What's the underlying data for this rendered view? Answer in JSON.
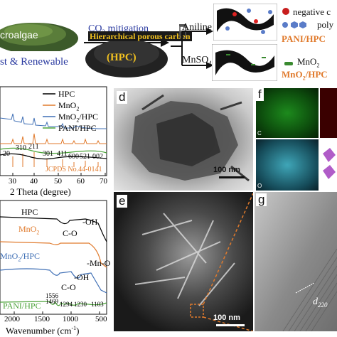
{
  "top": {
    "microalgae_label": "croalgae",
    "fast_renewable": "st & Renewable",
    "co2_label": "CO",
    "co2_sub": "2",
    "co2_rest": " mitigation",
    "hpc_title": "Hierarchical porous carbon",
    "hpc_abbr": "(HPC)",
    "aniline": "Aniline",
    "mnso4": "MnSO",
    "mnso4_sub": "4",
    "legend_negative": "negative c",
    "legend_poly": "poly",
    "pani_hpc": "PANI/HPC",
    "legend_mno2": "MnO",
    "legend_mno2_sub": "2",
    "mno2_hpc": "MnO",
    "mno2_hpc_sub": "2",
    "mno2_hpc_rest": "/HPC"
  },
  "xrd": {
    "legend": [
      {
        "name": "HPC",
        "color": "#000000"
      },
      {
        "name": "MnO2",
        "color": "#e07a2c"
      },
      {
        "name": "MnO2/HPC",
        "color": "#3f6fb5"
      },
      {
        "name": "PANI/HPC",
        "color": "#4ca33a"
      }
    ],
    "peak_labels": [
      "20",
      "310",
      "211",
      "301",
      "411",
      "600",
      "521",
      "002"
    ],
    "jcpds": "JCPDS No.44-0141",
    "xticks": [
      "30",
      "40",
      "50",
      "60",
      "70"
    ],
    "xlabel": "2 Theta (degree)"
  },
  "ftir": {
    "labels": {
      "hpc": "HPC",
      "oh1": "-OH",
      "mno2": "MnO",
      "mno2_sub": "2",
      "co1": "C-O",
      "mno2hpc": "MnO",
      "mno2hpc_sub": "2",
      "mno2hpc_rest": "/HPC",
      "oh2": "-OH",
      "mno": "-Mn-O",
      "co2": "C-O",
      "pani": "PANI/HPC",
      "w1556": "1556",
      "w1469": "1469",
      "w1294": "1294",
      "w1230": "1230",
      "w1103": "1103"
    },
    "xticks": [
      "2000",
      "1500",
      "1000",
      "500"
    ],
    "xlabel": "Wavenumber (cm",
    "xlabel_sup": "-1",
    "xlabel_end": ")"
  },
  "panels": {
    "d": "d",
    "e": "e",
    "f": "f",
    "g": "g",
    "scale_d": "100 nm",
    "scale_e": "100 nm",
    "map_c": "C",
    "map_o": "O",
    "d220": "d",
    "d220_sub": "220"
  }
}
